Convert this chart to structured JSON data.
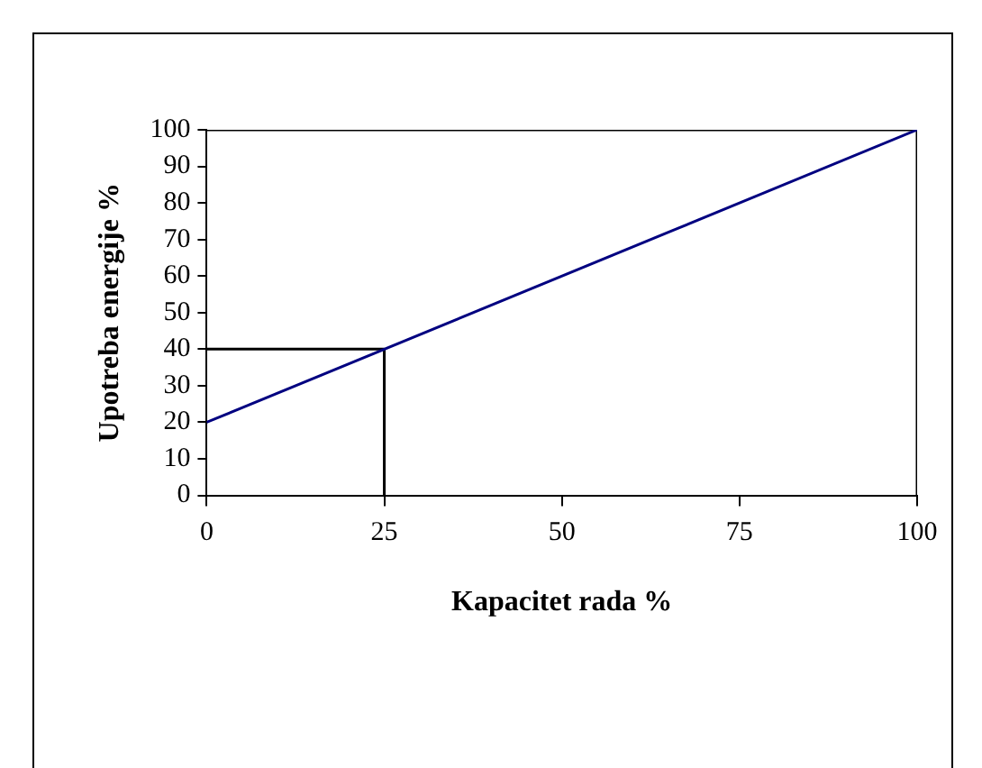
{
  "chart_data": {
    "type": "line",
    "xlabel": "Kapacitet rada %",
    "ylabel": "Upotreba energije %",
    "xlim": [
      0,
      100
    ],
    "xticks": [
      0,
      25,
      50,
      75,
      100
    ],
    "ylim": [
      0,
      100
    ],
    "yticks": [
      0,
      10,
      20,
      30,
      40,
      50,
      60,
      70,
      80,
      90,
      100
    ],
    "grid": false,
    "legend": false,
    "marker": "none",
    "line_style": "solid",
    "series": [
      {
        "color": "#000080",
        "x": [
          0,
          100
        ],
        "values": [
          20,
          100
        ]
      },
      {
        "color": "#000000",
        "x": [
          0,
          25,
          25
        ],
        "values": [
          40,
          40,
          0
        ]
      },
      {
        "color": "#000000",
        "x": [
          0,
          100,
          100
        ],
        "values": [
          100,
          100,
          0
        ]
      }
    ]
  }
}
